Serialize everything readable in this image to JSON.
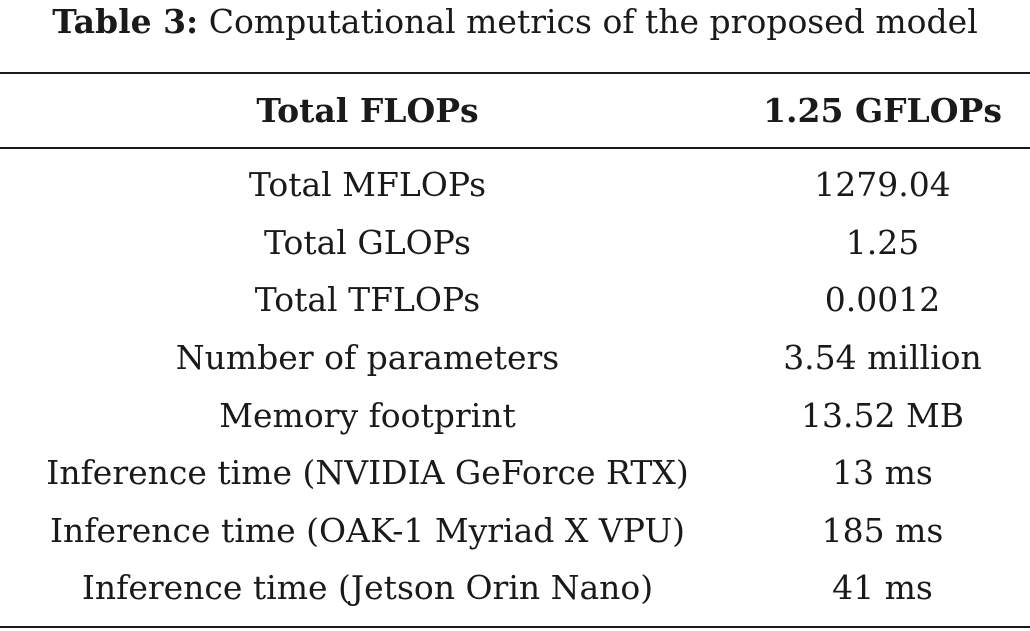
{
  "caption": {
    "label": "Table 3:",
    "text": "Computational metrics of the proposed model"
  },
  "table": {
    "header": [
      "Total FLOPs",
      "1.25 GFLOPs"
    ],
    "rows": [
      [
        "Total MFLOPs",
        "1279.04"
      ],
      [
        "Total GLOPs",
        "1.25"
      ],
      [
        "Total TFLOPs",
        "0.0012"
      ],
      [
        "Number of parameters",
        "3.54 million"
      ],
      [
        "Memory footprint",
        "13.52 MB"
      ],
      [
        "Inference time (NVIDIA GeForce RTX)",
        "13 ms"
      ],
      [
        "Inference time (OAK-1 Myriad X VPU)",
        "185 ms"
      ],
      [
        "Inference time (Jetson Orin Nano)",
        "41 ms"
      ]
    ]
  }
}
